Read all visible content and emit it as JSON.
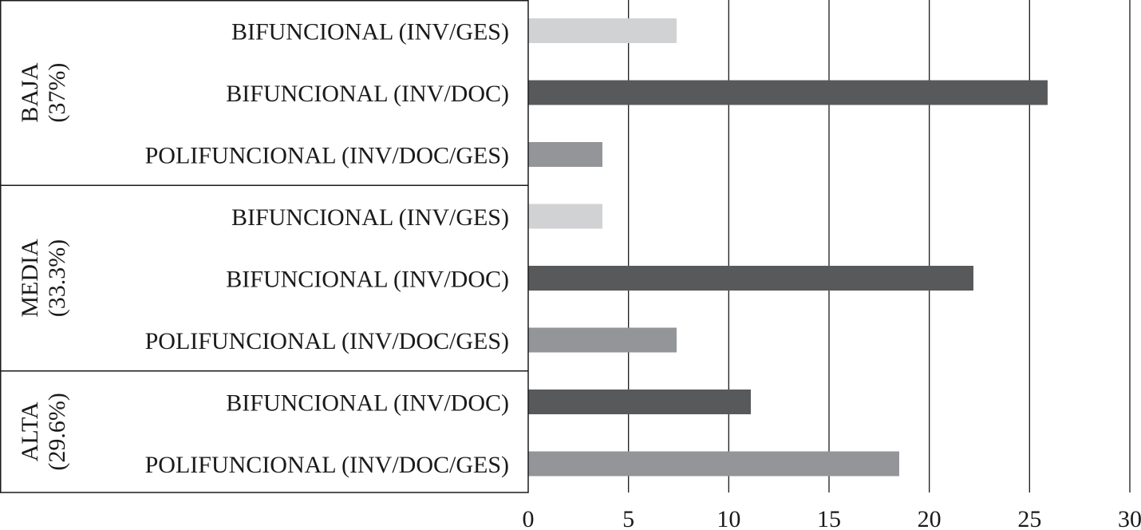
{
  "chart_data": {
    "type": "bar",
    "orientation": "horizontal",
    "xlim": [
      0,
      30
    ],
    "xticks": [
      0,
      5,
      10,
      15,
      20,
      25,
      30
    ],
    "grid": "vertical",
    "colors": {
      "BIFUNCIONAL (INV/GES)": "#d1d2d4",
      "BIFUNCIONAL (INV/DOC)": "#58595b",
      "POLIFUNCIONAL (INV/DOC/GES)": "#939598"
    },
    "groups": [
      {
        "name": "BAJA",
        "share": "(37%)",
        "bars": [
          {
            "label": "BIFUNCIONAL (INV/GES)",
            "value": 7.4
          },
          {
            "label": "BIFUNCIONAL (INV/DOC)",
            "value": 25.9
          },
          {
            "label": "POLIFUNCIONAL (INV/DOC/GES)",
            "value": 3.7
          }
        ]
      },
      {
        "name": "MEDIA",
        "share": "(33.3%)",
        "bars": [
          {
            "label": "BIFUNCIONAL (INV/GES)",
            "value": 3.7
          },
          {
            "label": "BIFUNCIONAL (INV/DOC)",
            "value": 22.2
          },
          {
            "label": "POLIFUNCIONAL (INV/DOC/GES)",
            "value": 7.4
          }
        ]
      },
      {
        "name": "ALTA",
        "share": "(29.6%)",
        "bars": [
          {
            "label": "BIFUNCIONAL (INV/DOC)",
            "value": 11.1
          },
          {
            "label": "POLIFUNCIONAL (INV/DOC/GES)",
            "value": 18.5
          }
        ]
      }
    ]
  }
}
